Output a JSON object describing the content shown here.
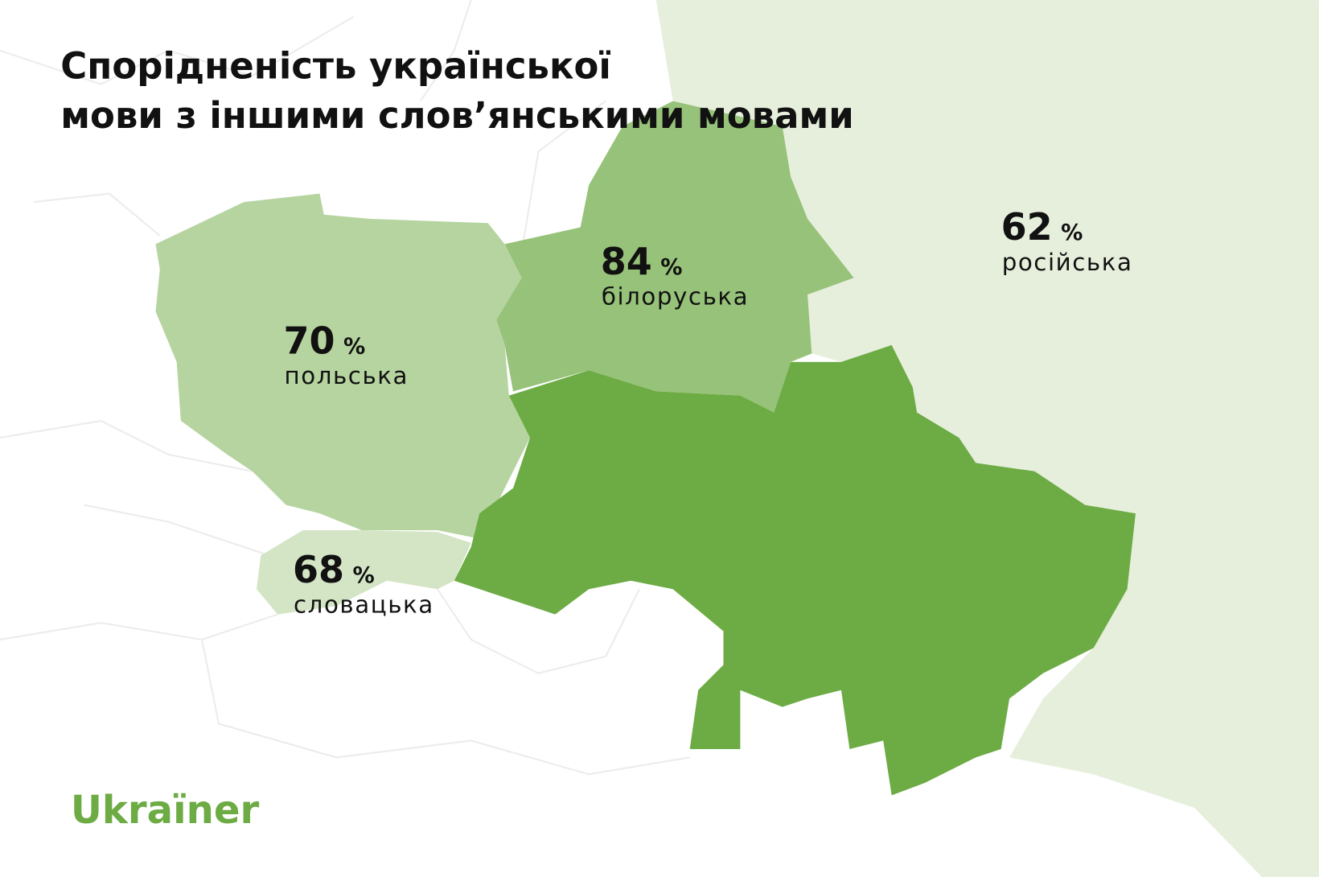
{
  "title": [
    "Спорідненість української",
    "мови з іншими слов’янськими мовами"
  ],
  "regions": [
    {
      "value": 70,
      "unit": "%",
      "name": "польська"
    },
    {
      "value": 84,
      "unit": "%",
      "name": "білоруська"
    },
    {
      "value": 68,
      "unit": "%",
      "name": "словацька"
    },
    {
      "value": 62,
      "unit": "%",
      "name": "російська"
    }
  ],
  "logo": "Ukraїner"
}
